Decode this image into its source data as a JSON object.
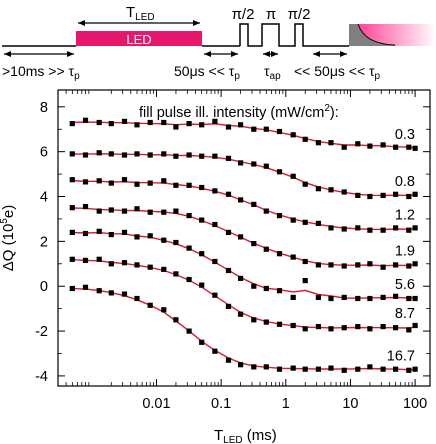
{
  "timing": {
    "t_led_label": "T",
    "t_led_sub": "LED",
    "led_label": "LED",
    "pi_half_1": "π/2",
    "pi": "π",
    "pi_half_2": "π/2",
    "gap1_main": ">10ms >> τ",
    "gap1_sub": "p",
    "gap2_main": "50μs << τ",
    "gap2_sub": "p",
    "tau_ap_main": "τ",
    "tau_ap_sub": "ap",
    "gap3_main": "<< 50μs << τ",
    "gap3_sub": "p",
    "colors": {
      "led": "#e8176e",
      "pulse_fill": "#808080",
      "decay_fade": "#ff80c0"
    }
  },
  "chart_data": {
    "type": "scatter",
    "xscale": "log",
    "xlim": [
      0.0003,
      170
    ],
    "ylim": [
      -4.45,
      8.75
    ],
    "xticks": [
      0.01,
      0.1,
      1,
      10,
      100
    ],
    "xtick_labels": [
      "0.01",
      "0.1",
      "1",
      "10",
      "100"
    ],
    "yticks": [
      -4,
      -2,
      0,
      2,
      4,
      6,
      8
    ],
    "ytick_labels": [
      "-4",
      "-2",
      "0",
      "2",
      "4",
      "6",
      "8"
    ],
    "xlabel": "T",
    "xlabel_sub": "LED",
    "xlabel_unit": " (ms)",
    "ylabel": "ΔQ (10",
    "ylabel_sup": "5",
    "ylabel_end": "e)",
    "legend_title": "fill pulse ill. intensity (mW/cm",
    "legend_title_sup": "2",
    "legend_title_end": "):",
    "marker_color": "#000000",
    "fit_color": "#e0192a",
    "x": [
      0.0005,
      0.0008,
      0.0013,
      0.002,
      0.0032,
      0.005,
      0.008,
      0.013,
      0.02,
      0.032,
      0.05,
      0.08,
      0.13,
      0.2,
      0.32,
      0.5,
      0.8,
      1.3,
      2,
      3.2,
      5,
      8,
      13,
      20,
      32,
      50,
      80,
      100
    ],
    "series": [
      {
        "name": "0.3",
        "values": [
          7.25,
          7.4,
          7.3,
          7.25,
          7.35,
          7.2,
          7.3,
          7.3,
          7.1,
          7.25,
          7.2,
          7.35,
          7.1,
          7.2,
          7.0,
          7.0,
          6.9,
          6.75,
          6.55,
          6.4,
          6.4,
          6.2,
          6.35,
          6.25,
          6.3,
          6.2,
          6.2,
          6.15
        ]
      },
      {
        "name": "0.8",
        "values": [
          5.9,
          5.85,
          5.95,
          5.9,
          5.85,
          5.9,
          5.85,
          5.9,
          5.8,
          5.85,
          5.8,
          5.8,
          5.7,
          5.5,
          5.45,
          5.35,
          5.1,
          4.9,
          4.55,
          4.35,
          4.3,
          4.2,
          4.05,
          4.0,
          4.05,
          4.1,
          4.0,
          4.1
        ]
      },
      {
        "name": "1.2",
        "values": [
          4.75,
          4.65,
          4.7,
          4.6,
          4.75,
          4.55,
          4.6,
          4.7,
          4.5,
          4.5,
          4.4,
          4.25,
          4.1,
          3.85,
          3.65,
          3.35,
          3.15,
          2.95,
          2.85,
          2.8,
          2.6,
          2.55,
          2.6,
          2.5,
          2.5,
          2.6,
          2.5,
          2.6
        ]
      },
      {
        "name": "1.9",
        "values": [
          3.5,
          3.55,
          3.35,
          3.4,
          3.35,
          3.45,
          3.3,
          3.3,
          3.35,
          3.15,
          2.95,
          2.75,
          2.4,
          2.2,
          1.9,
          1.65,
          1.45,
          1.3,
          1.1,
          0.95,
          0.95,
          0.9,
          0.95,
          1.0,
          0.85,
          0.95,
          0.9,
          1.0
        ]
      },
      {
        "name": "5.6",
        "values": [
          2.4,
          2.35,
          2.45,
          2.3,
          2.4,
          2.2,
          2.25,
          2.05,
          1.95,
          1.7,
          1.45,
          1.1,
          0.7,
          0.35,
          0.0,
          -0.1,
          -0.2,
          -0.5,
          0.25,
          -0.5,
          -0.55,
          -0.5,
          -0.55,
          -0.55,
          -0.5,
          -0.45,
          -0.55,
          -0.55
        ]
      },
      {
        "name": "8.7",
        "values": [
          1.2,
          1.15,
          1.2,
          1.0,
          1.05,
          0.95,
          0.85,
          0.75,
          0.55,
          0.3,
          0.05,
          -0.4,
          -0.9,
          -1.25,
          -1.5,
          -1.6,
          -1.7,
          -1.75,
          -1.9,
          -1.8,
          -1.9,
          -1.85,
          -1.8,
          -1.9,
          -1.8,
          -1.85,
          -1.95,
          -1.75
        ]
      },
      {
        "name": "16.7",
        "values": [
          -0.1,
          -0.05,
          -0.2,
          -0.3,
          -0.35,
          -0.55,
          -0.85,
          -1.05,
          -1.5,
          -2.0,
          -2.5,
          -2.9,
          -3.3,
          -3.5,
          -3.6,
          -3.6,
          -3.7,
          -3.65,
          -3.7,
          -3.7,
          -3.65,
          -3.75,
          -3.7,
          -3.6,
          -3.7,
          -3.7,
          -3.75,
          -3.7
        ]
      }
    ]
  }
}
